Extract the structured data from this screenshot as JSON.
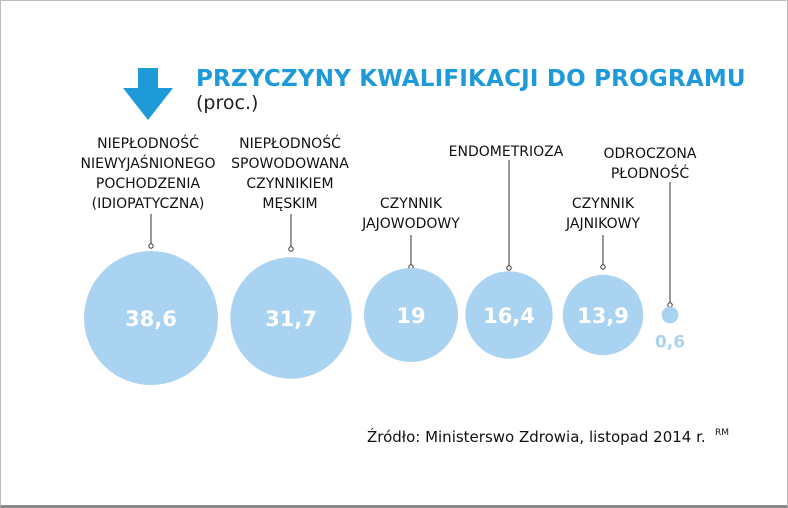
{
  "chart_data": {
    "type": "bubble",
    "title": "PRZYCZYNY KWALIFIKACJI DO PROGRAMU",
    "subtitle": "(proc.)",
    "categories": [
      "NIEPŁODNOŚĆ\nNIEWYJAŚNIONEGO\nPOCHODZENIA\n(IDIOPATYCZNA)",
      "NIEPŁODNOŚĆ\nSPOWODOWANA\nCZYNNIKIEM\nMĘSKIM",
      "CZYNNIK\nJAJOWODOWY",
      "ENDOMETRIOZA",
      "CZYNNIK\nJAJNIKOWY",
      "ODROCZONA\nPŁODNOŚĆ"
    ],
    "values": [
      38.6,
      31.7,
      19,
      16.4,
      13.9,
      0.6
    ],
    "value_labels": [
      "38,6",
      "31,7",
      "19",
      "16,4",
      "13,9",
      "0,6"
    ],
    "source": "Źródło: Ministerswo Zdrowia, listopad 2014 r.",
    "author": "RM",
    "colors": {
      "bubble": "#a9d3f1",
      "value_text": "#ffffff",
      "small_value_text": "#a9d3f1",
      "accent": "#1e9ad9",
      "leader": "#333333"
    },
    "icons": {
      "title_arrow": "arrow-down-icon"
    }
  }
}
